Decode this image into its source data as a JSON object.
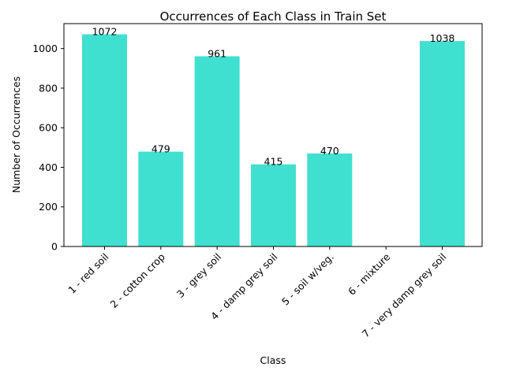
{
  "chart_data": {
    "type": "bar",
    "title": "Occurrences of Each Class in Train Set",
    "xlabel": "Class",
    "ylabel": "Number of Occurrences",
    "categories": [
      "1 - red soil",
      "2 - cotton crop",
      "3 - grey soil",
      "4 - damp grey soil",
      "5 - soil w/veg.",
      "6 - mixture",
      "7 - very damp grey soil"
    ],
    "values": [
      1072,
      479,
      961,
      415,
      470,
      0,
      1038
    ],
    "data_labels": [
      "1072",
      "479",
      "961",
      "415",
      "470",
      "",
      "1038"
    ],
    "ylim": [
      0,
      1126
    ],
    "yticks": [
      0,
      200,
      400,
      600,
      800,
      1000
    ],
    "bar_color": "#40e0d0",
    "grid": false,
    "legend": "none"
  }
}
